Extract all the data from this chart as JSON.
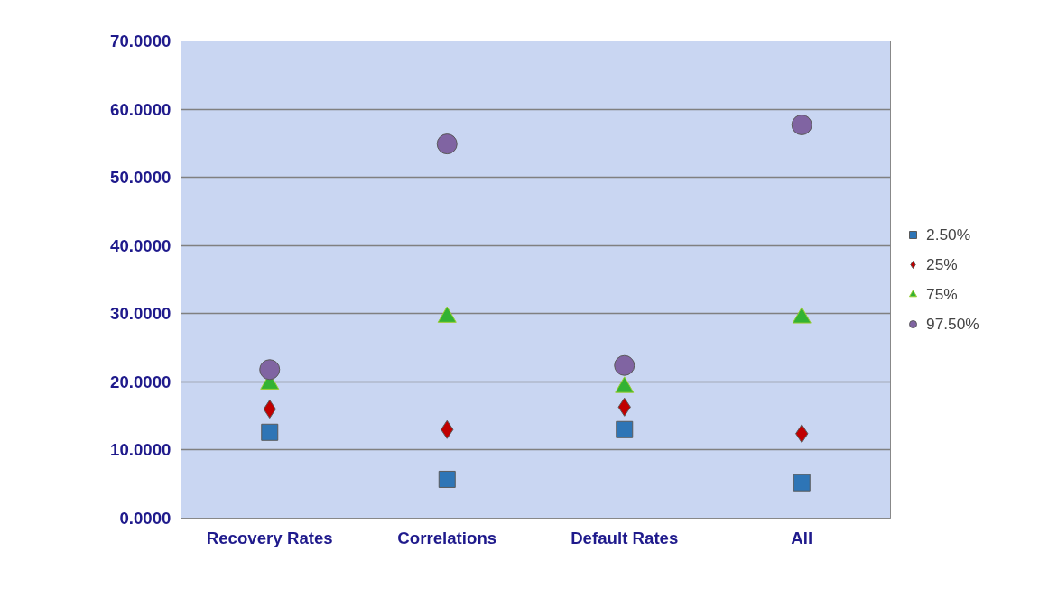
{
  "chart_data": {
    "type": "scatter",
    "categories": [
      "Recovery Rates",
      "Correlations",
      "Default Rates",
      "All"
    ],
    "series": [
      {
        "name": "2.50%",
        "color": "#2e75b6",
        "marker": "square",
        "values": [
          12.6,
          5.7,
          13.0,
          5.2
        ]
      },
      {
        "name": "25%",
        "color": "#c00000",
        "marker": "diamond",
        "values": [
          16.0,
          13.0,
          16.3,
          12.4
        ]
      },
      {
        "name": "75%",
        "color": "#33b233",
        "marker": "triangle",
        "values": [
          19.7,
          29.5,
          19.2,
          29.4
        ]
      },
      {
        "name": "97.50%",
        "color": "#8064a2",
        "marker": "circle",
        "values": [
          21.8,
          54.9,
          22.4,
          57.7
        ]
      }
    ],
    "ylim": [
      0,
      70
    ],
    "yticks": [
      {
        "value": 0,
        "label": "0.0000"
      },
      {
        "value": 10,
        "label": "10.0000"
      },
      {
        "value": 20,
        "label": "20.0000"
      },
      {
        "value": 30,
        "label": "30.0000"
      },
      {
        "value": 40,
        "label": "40.0000"
      },
      {
        "value": 50,
        "label": "50.0000"
      },
      {
        "value": 60,
        "label": "60.0000"
      },
      {
        "value": 70,
        "label": "70.0000"
      }
    ],
    "grid": "y",
    "legend": "right"
  }
}
